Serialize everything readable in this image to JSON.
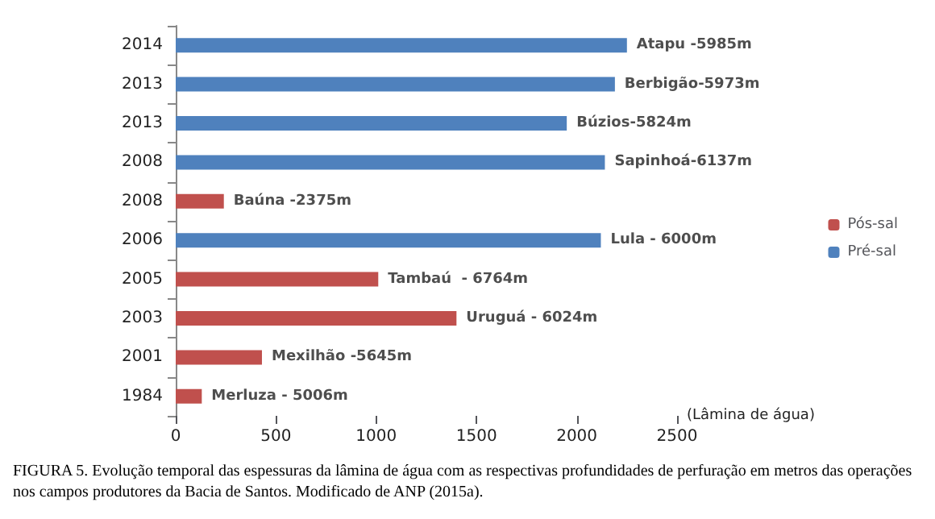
{
  "chart_data": {
    "type": "bar",
    "orientation": "horizontal",
    "stacked": true,
    "categories": [
      "2014",
      "2013",
      "2013",
      "2008",
      "2008",
      "2006",
      "2005",
      "2003",
      "2001",
      "1984"
    ],
    "xlabel": "(Lâmina de água)",
    "xlim": [
      0,
      2500
    ],
    "xticks": [
      0,
      500,
      1000,
      1500,
      2000,
      2500
    ],
    "series": [
      {
        "name": "Pós-sal",
        "color": "#c0504d",
        "values": [
          null,
          null,
          null,
          null,
          240,
          null,
          1010,
          1400,
          430,
          130
        ]
      },
      {
        "name": "Pré-sal",
        "color": "#4f81bd",
        "values": [
          2250,
          2190,
          1950,
          2140,
          null,
          2120,
          null,
          null,
          null,
          null
        ]
      }
    ],
    "grid": false,
    "legend": "right",
    "annotations": [
      {
        "text": "Atapu -5985m",
        "x": 2250,
        "y": "2014"
      },
      {
        "text": "Berbigão-5973m",
        "x": 2190,
        "y": "2013"
      },
      {
        "text": "Búzios-5824m",
        "x": 1950,
        "y": "2013"
      },
      {
        "text": "Sapinhoá-6137m",
        "x": 2140,
        "y": "2008"
      },
      {
        "text": "Baúna -2375m",
        "x": 240,
        "y": "2008"
      },
      {
        "text": "Lula - 6000m",
        "x": 2120,
        "y": "2006"
      },
      {
        "text": "Tambaú  - 6764m",
        "x": 1010,
        "y": "2005"
      },
      {
        "text": "Uruguá - 6024m",
        "x": 1400,
        "y": "2003"
      },
      {
        "text": "Mexilhão -5645m",
        "x": 430,
        "y": "2001"
      },
      {
        "text": "Merluza - 5006m",
        "x": 130,
        "y": "1984"
      },
      "FIGURA 5. Evolução temporal das espessuras da lâmina de água com as respectivas profundidades de perfuração em metros das operações nos campos produtores da Bacia de Santos. Modificado de ANP (2015a)."
    ]
  }
}
